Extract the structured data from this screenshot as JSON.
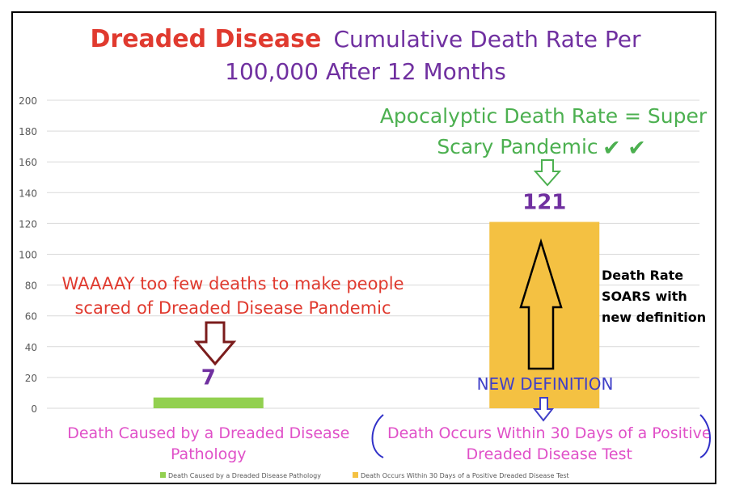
{
  "chart_data": {
    "type": "bar",
    "title_part1": "Dreaded Disease",
    "title_part2": "Cumulative Death Rate Per",
    "title_line2": "100,000 After 12 Months",
    "categories": [
      [
        "Death Caused by a Dreaded Disease",
        "Pathology"
      ],
      [
        "Death Occurs Within 30 Days of a Positive",
        "Dreaded Disease Test"
      ]
    ],
    "values": [
      7,
      121
    ],
    "value_labels": [
      "7",
      "121"
    ],
    "colors": [
      "#92d050",
      "#f4c142"
    ],
    "ylim": [
      0,
      200
    ],
    "yticks": [
      0,
      20,
      40,
      60,
      80,
      100,
      120,
      140,
      160,
      180,
      200
    ],
    "legend": {
      "placement": "bottom",
      "entries": [
        "Death Caused by a Dreaded Disease Pathology",
        "Death Occurs Within 30 Days of a Positive Dreaded Disease Test"
      ]
    },
    "annotations": {
      "left_text": [
        "WAAAAY too few deaths to make people",
        "scared of Dreaded Disease Pandemic"
      ],
      "right_top_text": [
        "Apocalyptic Death Rate = Super",
        "Scary Pandemic"
      ],
      "checkmarks": "✔ ✔",
      "soars_text": [
        "Death Rate",
        "SOARS with",
        "new definition"
      ],
      "new_definition": "NEW DEFINITION"
    },
    "text_colors": {
      "title_red": "#e03a2f",
      "title_purple": "#7030a0",
      "left_annotation": "#e03a2f",
      "right_annotation": "#4cb050",
      "value_label": "#7030a0",
      "category_label": "#e050c8",
      "new_definition": "#4040c8",
      "dark_arrow": "#7b1c1c"
    }
  }
}
